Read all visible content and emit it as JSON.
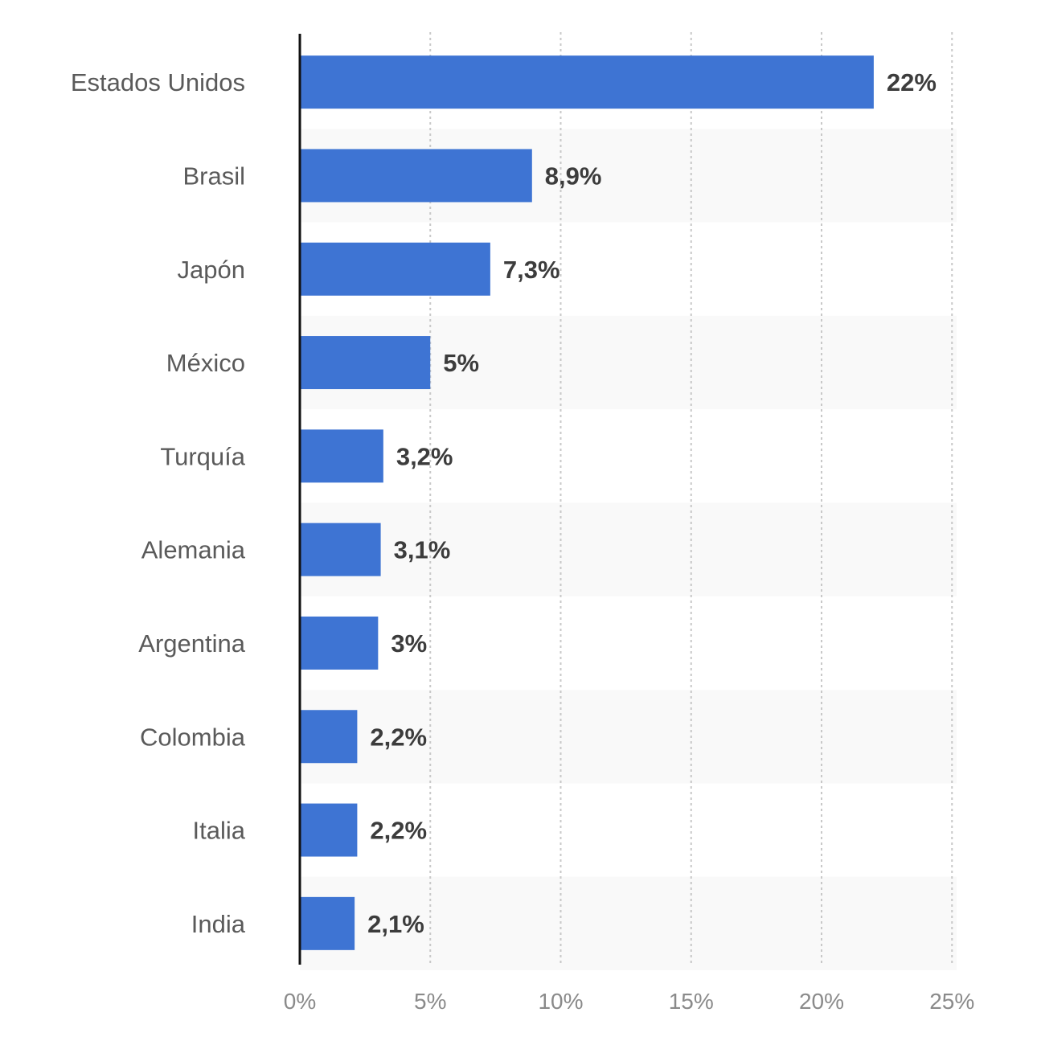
{
  "chart_data": {
    "type": "bar",
    "orientation": "horizontal",
    "categories": [
      "Estados Unidos",
      "Brasil",
      "Japón",
      "México",
      "Turquía",
      "Alemania",
      "Argentina",
      "Colombia",
      "Italia",
      "India"
    ],
    "values": [
      22,
      8.9,
      7.3,
      5,
      3.2,
      3.1,
      3,
      2.2,
      2.2,
      2.1
    ],
    "value_labels": [
      "22%",
      "8,9%",
      "7,3%",
      "5%",
      "3,2%",
      "3,1%",
      "3%",
      "2,2%",
      "2,2%",
      "2,1%"
    ],
    "x_ticks": [
      0,
      5,
      10,
      15,
      20,
      25
    ],
    "x_tick_labels": [
      "0%",
      "5%",
      "10%",
      "15%",
      "20%",
      "25%"
    ],
    "xlim": [
      0,
      25
    ],
    "grid": "vertical-dotted",
    "legend": "none",
    "bar_color": "#3e74d3",
    "band_color": "#f9f9f9",
    "title": "",
    "xlabel": "",
    "ylabel": ""
  }
}
